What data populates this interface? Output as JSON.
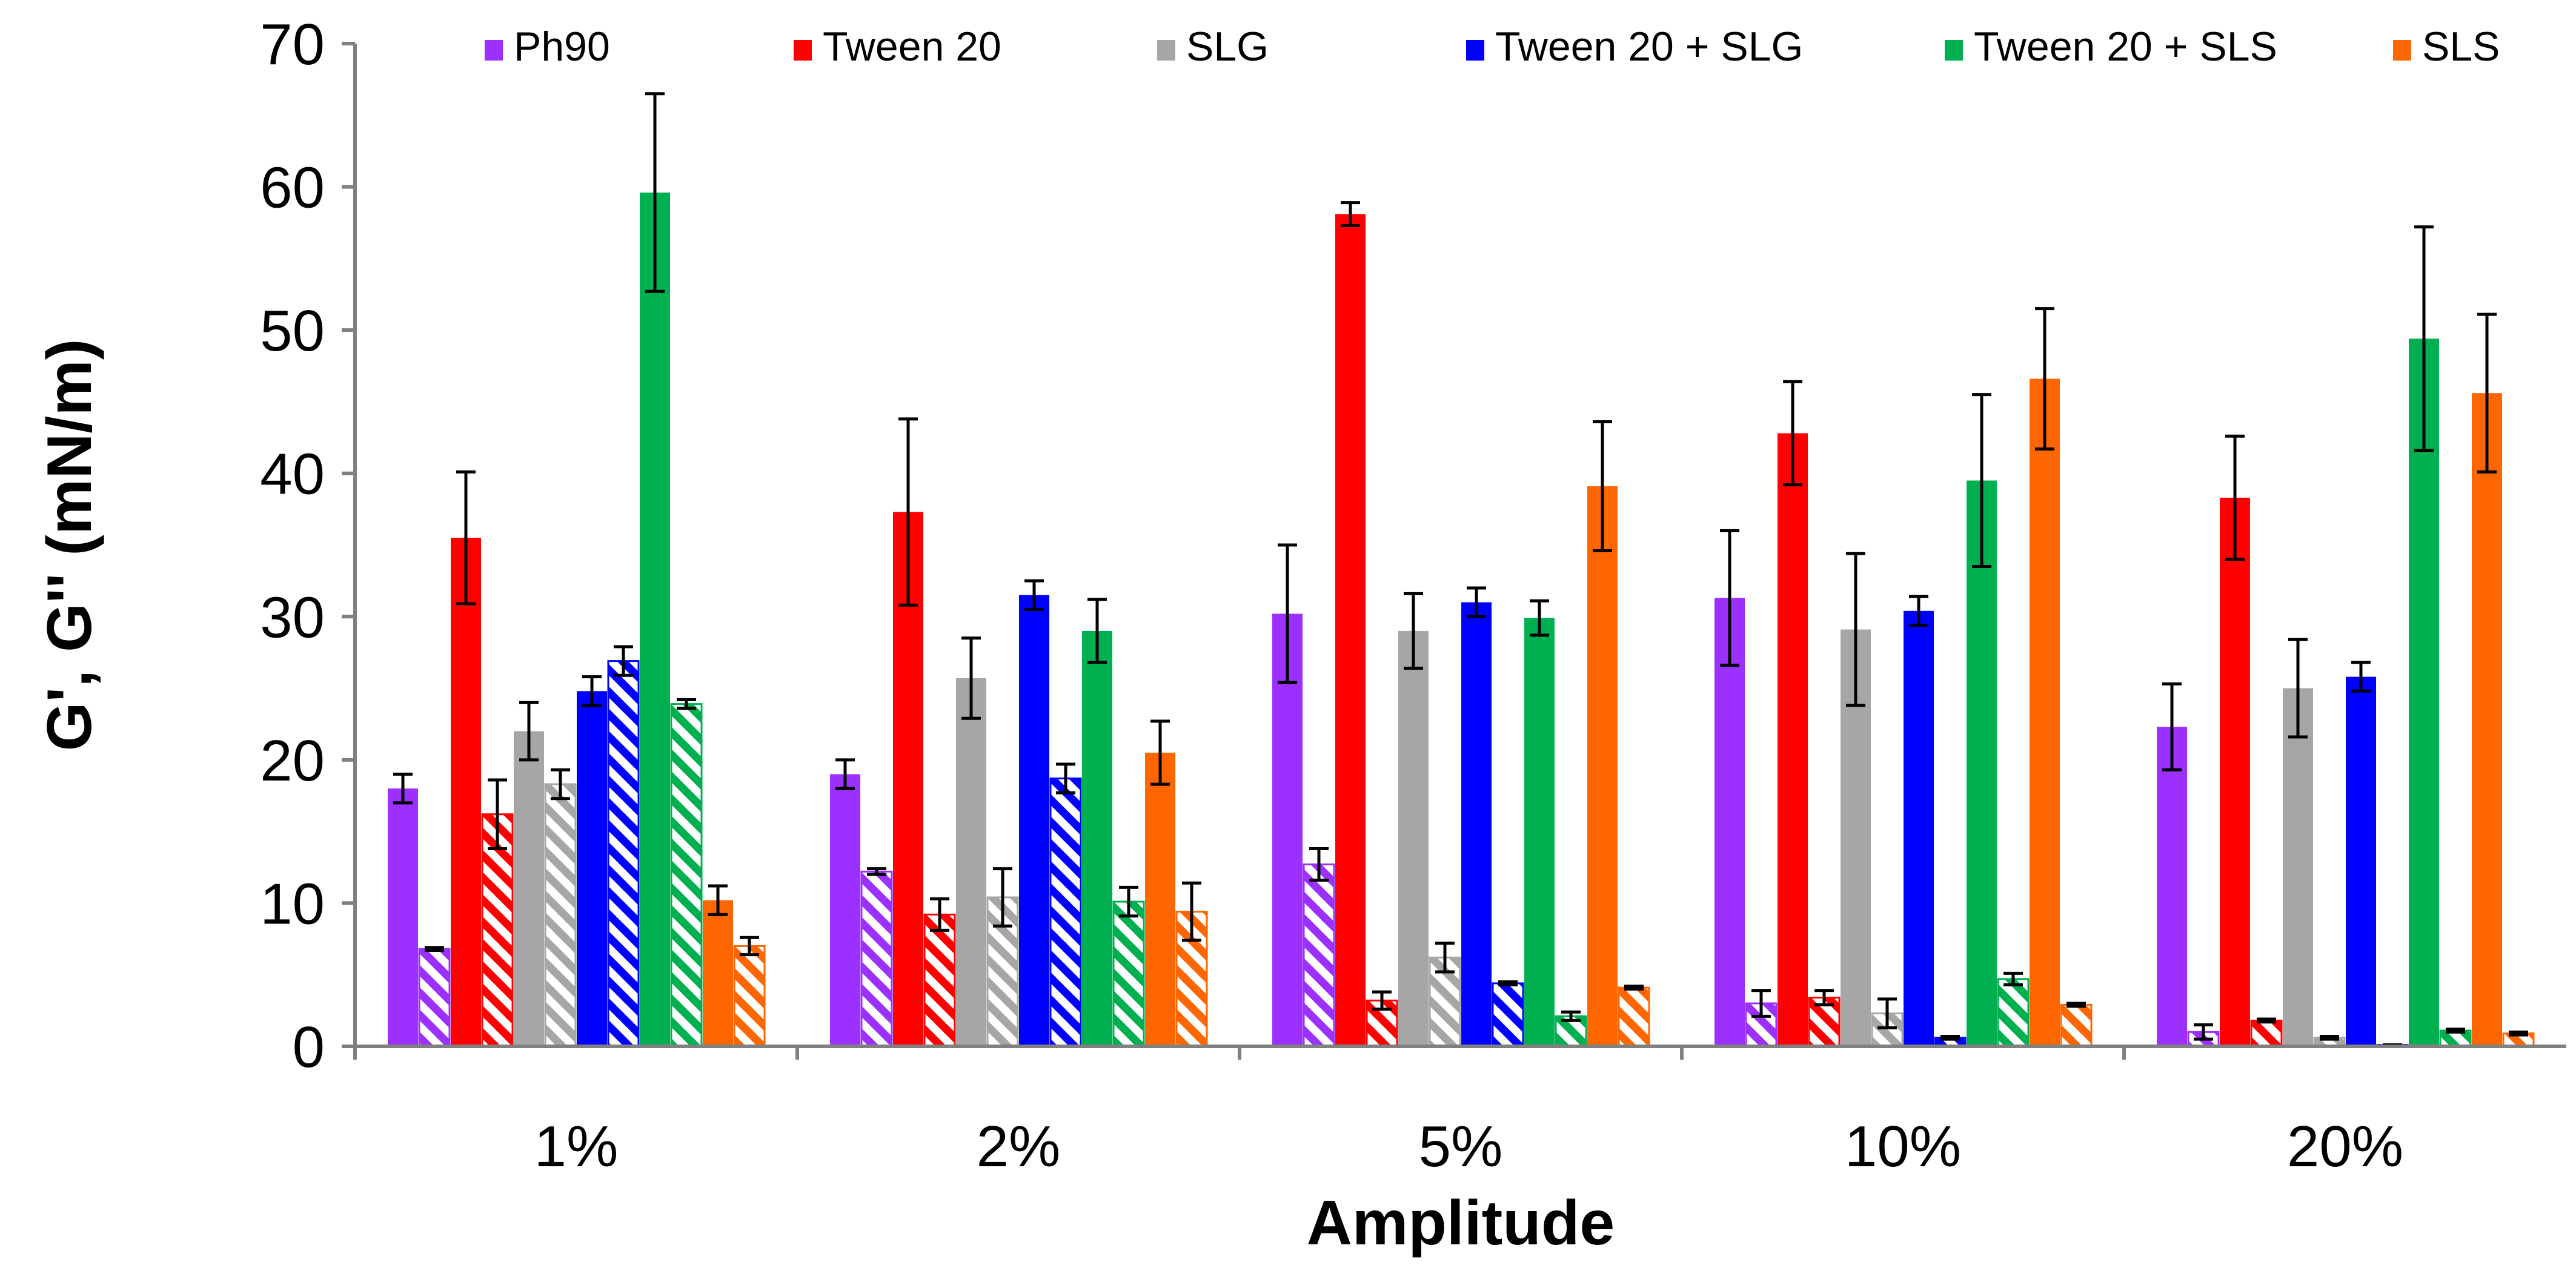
{
  "chart_data": {
    "type": "bar",
    "xlabel": "Amplitude",
    "ylabel": "G', G'' (mN/m)",
    "ylim": [
      0,
      70
    ],
    "yticks": [
      0,
      10,
      20,
      30,
      40,
      50,
      60,
      70
    ],
    "grid": false,
    "legend_position": "top",
    "categories": [
      "1%",
      "2%",
      "5%",
      "10%",
      "20%"
    ],
    "series": [
      {
        "name": "Ph90",
        "color": "#9B30FF",
        "g_prime": [
          18.0,
          19.0,
          30.2,
          31.3,
          22.3
        ],
        "g_prime_err": [
          1.0,
          1.0,
          4.8,
          4.7,
          3.0
        ],
        "g_double_prime": [
          6.8,
          12.2,
          12.7,
          3.0,
          1.0
        ],
        "g_double_prime_err": [
          0.1,
          0.2,
          1.1,
          0.9,
          0.5
        ]
      },
      {
        "name": "Tween 20",
        "color": "#FF0000",
        "g_prime": [
          35.5,
          37.3,
          58.1,
          42.8,
          38.3
        ],
        "g_prime_err": [
          4.6,
          6.5,
          0.8,
          3.6,
          4.3
        ],
        "g_double_prime": [
          16.2,
          9.2,
          3.2,
          3.4,
          1.8
        ],
        "g_double_prime_err": [
          2.4,
          1.1,
          0.6,
          0.5,
          0.1
        ]
      },
      {
        "name": "SLG",
        "color": "#A6A6A6",
        "g_prime": [
          22.0,
          25.7,
          29.0,
          29.1,
          25.0
        ],
        "g_prime_err": [
          2.0,
          2.8,
          2.6,
          5.3,
          3.4
        ],
        "g_double_prime": [
          18.3,
          10.4,
          6.2,
          2.3,
          0.6
        ],
        "g_double_prime_err": [
          1.0,
          2.0,
          1.0,
          1.0,
          0.1
        ]
      },
      {
        "name": "Tween 20 + SLG",
        "color": "#0000FF",
        "g_prime": [
          24.8,
          31.5,
          31.0,
          30.4,
          25.8
        ],
        "g_prime_err": [
          1.0,
          1.0,
          1.0,
          1.0,
          1.0
        ],
        "g_double_prime": [
          26.9,
          18.7,
          4.4,
          0.6,
          0.1
        ],
        "g_double_prime_err": [
          1.0,
          1.0,
          0.1,
          0.1,
          0.0
        ]
      },
      {
        "name": "Tween 20 + SLS",
        "color": "#00B050",
        "g_prime": [
          59.6,
          29.0,
          29.9,
          39.5,
          49.4
        ],
        "g_prime_err": [
          6.9,
          2.2,
          1.2,
          6.0,
          7.8
        ],
        "g_double_prime": [
          23.9,
          10.1,
          2.1,
          4.7,
          1.1
        ],
        "g_double_prime_err": [
          0.3,
          1.0,
          0.3,
          0.4,
          0.1
        ]
      },
      {
        "name": "SLS",
        "color": "#FF6600",
        "g_prime": [
          10.2,
          20.5,
          39.1,
          46.6,
          45.6
        ],
        "g_prime_err": [
          1.0,
          2.2,
          4.5,
          4.9,
          5.5
        ],
        "g_double_prime": [
          7.0,
          9.4,
          4.1,
          2.9,
          0.9
        ],
        "g_double_prime_err": [
          0.6,
          2.0,
          0.1,
          0.1,
          0.1
        ]
      }
    ]
  }
}
